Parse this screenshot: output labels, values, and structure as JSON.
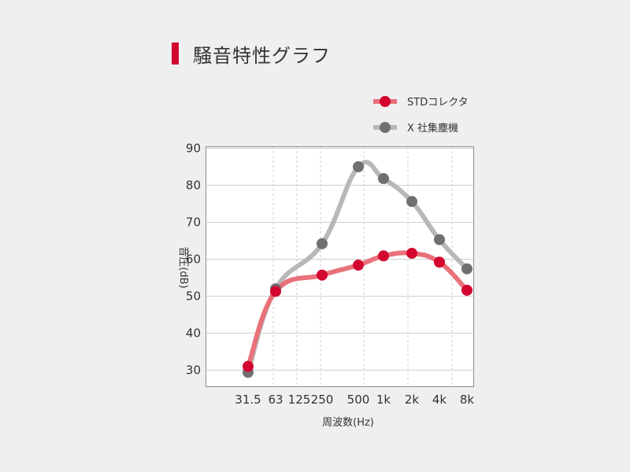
{
  "title": "騒音特性グラフ",
  "colors": {
    "accent": "#d2062f",
    "grid": "#c8c8c8",
    "frame": "#8c8c8c"
  },
  "chart_data": {
    "type": "line",
    "title": "騒音特性グラフ",
    "xlabel": "周波数(Hz)",
    "ylabel": "音圧(dB)",
    "categories": [
      "31.5",
      "63",
      "125",
      "250",
      "500",
      "1k",
      "2k",
      "4k",
      "8k"
    ],
    "ylim": [
      25,
      92
    ],
    "yticks": [
      30,
      40,
      50,
      60,
      70,
      80,
      90
    ],
    "grid": true,
    "legend": "top-right",
    "series": [
      {
        "name": "STDコレクタ",
        "line_color": "#e8717a",
        "marker_color": "#d2062f",
        "points": [
          {
            "x": "31.5",
            "y": 31
          },
          {
            "x": "63",
            "y": 51.3
          },
          {
            "x": "250",
            "y": 55.7
          },
          {
            "x": "500",
            "y": 58.4
          },
          {
            "x": "1k",
            "y": 60.9
          },
          {
            "x": "2k",
            "y": 61.6
          },
          {
            "x": "4k",
            "y": 59.2
          },
          {
            "x": "8k",
            "y": 51.6
          }
        ]
      },
      {
        "name": "X 社集塵機",
        "line_color": "#b8b8b8",
        "marker_color": "#707070",
        "points": [
          {
            "x": "31.5",
            "y": 29.4
          },
          {
            "x": "63",
            "y": 52
          },
          {
            "x": "250",
            "y": 64.2
          },
          {
            "x": "500",
            "y": 85
          },
          {
            "x": "1k",
            "y": 81.8
          },
          {
            "x": "2k",
            "y": 75.6
          },
          {
            "x": "4k",
            "y": 65.3
          },
          {
            "x": "8k",
            "y": 57.4
          }
        ]
      }
    ]
  }
}
